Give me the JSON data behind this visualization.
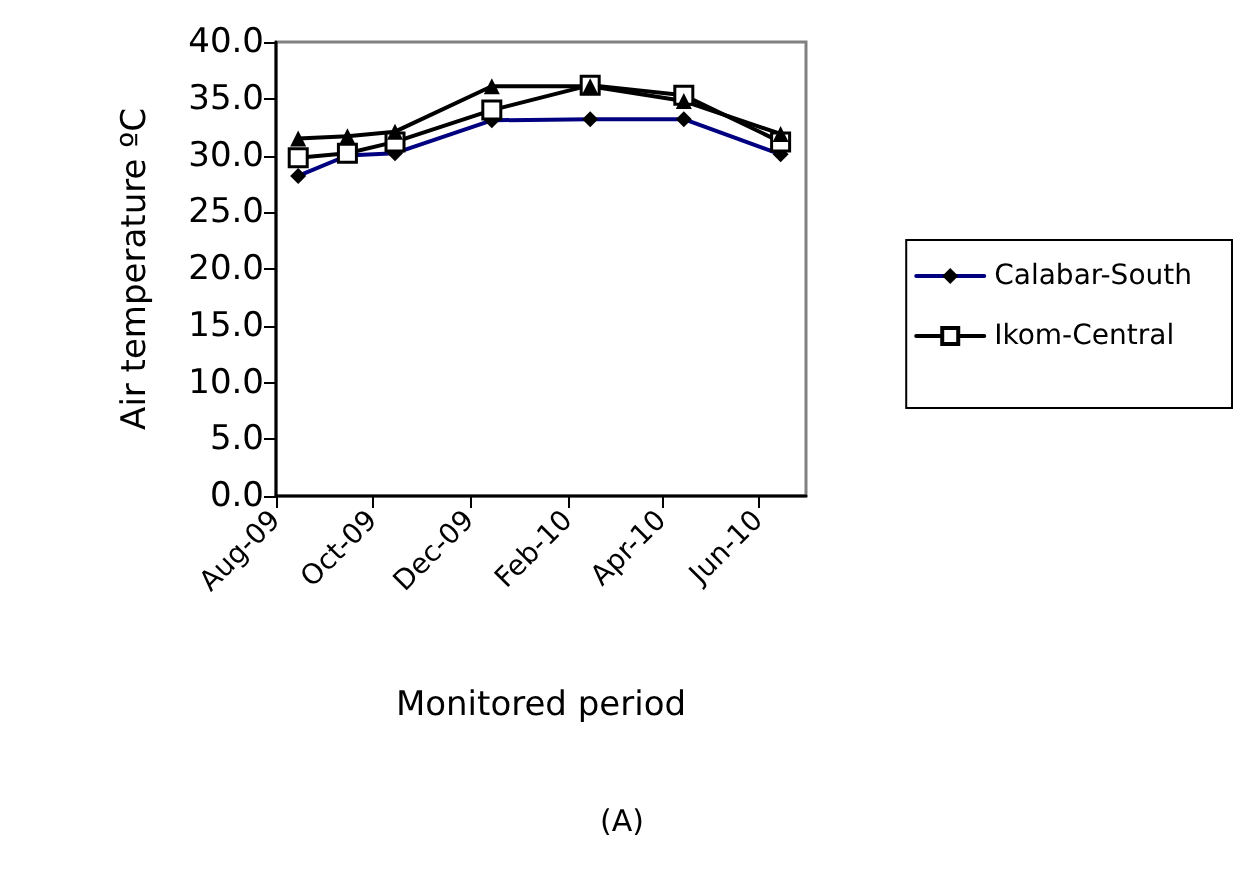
{
  "chart_data": {
    "type": "line",
    "xlabel": "Monitored period",
    "ylabel": "Air temperature ºC",
    "x": [
      "2009-08-15",
      "2009-09-15",
      "2009-10-15",
      "2009-12-15",
      "2010-02-15",
      "2010-04-15",
      "2010-06-15"
    ],
    "series": [
      {
        "name": "Calabar-South",
        "color": "#000080",
        "marker": "diamond",
        "values": [
          28.2,
          30.0,
          30.2,
          33.1,
          33.2,
          33.2,
          30.1
        ]
      },
      {
        "name": "Ikom-Central",
        "color": "#000000",
        "marker": "square",
        "values": [
          29.8,
          30.2,
          31.2,
          34.0,
          36.2,
          35.3,
          31.2
        ]
      },
      {
        "color": "#000000",
        "marker": "triangle",
        "values": [
          31.5,
          31.7,
          32.1,
          36.1,
          36.1,
          34.8,
          31.9
        ]
      }
    ],
    "xlim": [
      "2009-08-01",
      "2010-07-01"
    ],
    "xticks": [
      {
        "value": "2009-08-01",
        "label": "Aug-09"
      },
      {
        "value": "2009-10-01",
        "label": "Oct-09"
      },
      {
        "value": "2009-12-01",
        "label": "Dec-09"
      },
      {
        "value": "2010-02-01",
        "label": "Feb-10"
      },
      {
        "value": "2010-04-01",
        "label": "Apr-10"
      },
      {
        "value": "2010-06-01",
        "label": "Jun-10"
      }
    ],
    "ylim": [
      0,
      40
    ],
    "yticks": [
      {
        "value": 0,
        "label": "0.0"
      },
      {
        "value": 5,
        "label": "5.0"
      },
      {
        "value": 10,
        "label": "10.0"
      },
      {
        "value": 15,
        "label": "15.0"
      },
      {
        "value": 20,
        "label": "20.0"
      },
      {
        "value": 25,
        "label": "25.0"
      },
      {
        "value": 30,
        "label": "30.0"
      },
      {
        "value": 35,
        "label": "35.0"
      },
      {
        "value": 40,
        "label": "40.0"
      }
    ],
    "grid": false,
    "legend": "right",
    "line_style": "solid",
    "annotations": [
      "(A)"
    ]
  }
}
